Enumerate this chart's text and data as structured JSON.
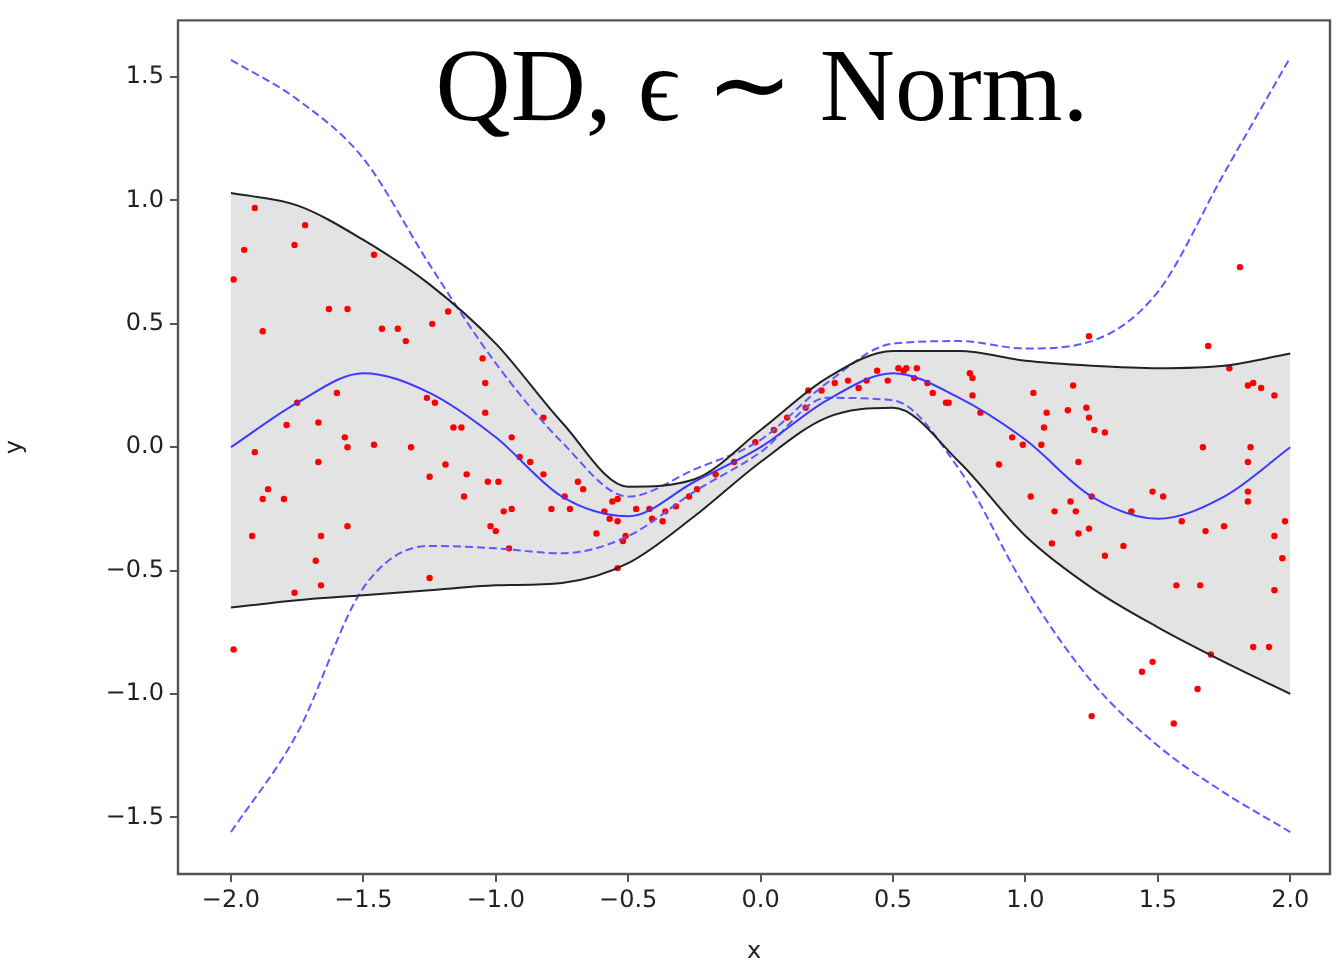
{
  "chart_data": {
    "type": "line",
    "title": "QD, ϵ ∼ Norm.",
    "xlabel": "x",
    "ylabel": "y",
    "xlim": [
      -2.2,
      2.15
    ],
    "ylim": [
      -1.73,
      1.73
    ],
    "xticks": [
      {
        "value": -2,
        "label": "−2.0"
      },
      {
        "value": -1.5,
        "label": "−1.5"
      },
      {
        "value": -1,
        "label": "−1.0"
      },
      {
        "value": -0.5,
        "label": "−0.5"
      },
      {
        "value": 0,
        "label": "0.0"
      },
      {
        "value": 0.5,
        "label": "0.5"
      },
      {
        "value": 1,
        "label": "1.0"
      },
      {
        "value": 1.5,
        "label": "1.5"
      },
      {
        "value": 2,
        "label": "2.0"
      }
    ],
    "yticks": [
      {
        "value": -1.5,
        "label": "−1.5"
      },
      {
        "value": -1,
        "label": "−1.0"
      },
      {
        "value": -0.5,
        "label": "−0.5"
      },
      {
        "value": 0,
        "label": "0.0"
      },
      {
        "value": 0.5,
        "label": "0.5"
      },
      {
        "value": 1,
        "label": "1.0"
      },
      {
        "value": 1.5,
        "label": "1.5"
      }
    ],
    "grid": false,
    "legend": false,
    "series": [
      {
        "color": "#3a3aff",
        "line_style": "solid",
        "x": [
          -2,
          -1.75,
          -1.5,
          -1.25,
          -1,
          -0.75,
          -0.5,
          -0.25,
          0,
          0.25,
          0.5,
          0.75,
          1,
          1.25,
          1.5,
          1.75,
          2
        ],
        "values": [
          0,
          0.18,
          0.3,
          0.22,
          0.04,
          -0.2,
          -0.28,
          -0.14,
          0,
          0.19,
          0.3,
          0.2,
          0.03,
          -0.2,
          -0.29,
          -0.2,
          0
        ],
        "lower": [
          -0.65,
          -0.62,
          -0.6,
          -0.58,
          -0.56,
          -0.55,
          -0.47,
          -0.28,
          -0.06,
          0.12,
          0.16,
          -0.06,
          -0.36,
          -0.57,
          -0.73,
          -0.87,
          -1.0
        ],
        "upper": [
          1.03,
          0.98,
          0.84,
          0.66,
          0.42,
          0.1,
          -0.16,
          -0.13,
          0.07,
          0.28,
          0.39,
          0.39,
          0.35,
          0.33,
          0.32,
          0.33,
          0.38
        ]
      },
      {
        "color": "#222222",
        "line_style": "solid",
        "x": [
          -2,
          -1.75,
          -1.5,
          -1.25,
          -1,
          -0.75,
          -0.5,
          -0.25,
          0,
          0.25,
          0.5,
          0.75,
          1,
          1.25,
          1.5,
          1.75,
          2
        ],
        "values": [
          -0.65,
          -0.62,
          -0.6,
          -0.58,
          -0.56,
          -0.55,
          -0.47,
          -0.28,
          -0.06,
          0.12,
          0.16,
          -0.06,
          -0.36,
          -0.57,
          -0.73,
          -0.87,
          -1.0
        ]
      },
      {
        "color": "#222222",
        "line_style": "solid",
        "x": [
          -2,
          -1.75,
          -1.5,
          -1.25,
          -1,
          -0.75,
          -0.5,
          -0.25,
          0,
          0.25,
          0.5,
          0.75,
          1,
          1.25,
          1.5,
          1.75,
          2
        ],
        "values": [
          1.03,
          0.98,
          0.84,
          0.66,
          0.42,
          0.1,
          -0.16,
          -0.13,
          0.07,
          0.28,
          0.39,
          0.39,
          0.35,
          0.33,
          0.32,
          0.33,
          0.38
        ]
      },
      {
        "color": "#5a5aff",
        "line_style": "dashed",
        "x": [
          -2,
          -1.75,
          -1.5,
          -1.25,
          -1,
          -0.75,
          -0.5,
          -0.25,
          0,
          0.25,
          0.5,
          0.75,
          1,
          1.25,
          1.5,
          1.75,
          2
        ],
        "values": [
          1.57,
          1.41,
          1.17,
          0.74,
          0.34,
          0.02,
          -0.2,
          -0.09,
          0.03,
          0.26,
          0.42,
          0.43,
          0.4,
          0.43,
          0.63,
          1.11,
          1.58
        ]
      },
      {
        "color": "#5a5aff",
        "line_style": "dashed",
        "x": [
          -2,
          -1.75,
          -1.5,
          -1.25,
          -1,
          -0.75,
          -0.5,
          -0.25,
          0,
          0.25,
          0.5,
          0.75,
          1,
          1.25,
          1.5,
          1.75,
          2
        ],
        "values": [
          -1.56,
          -1.16,
          -0.57,
          -0.4,
          -0.41,
          -0.43,
          -0.36,
          -0.18,
          -0.02,
          0.2,
          0.19,
          -0.09,
          -0.57,
          -0.95,
          -1.21,
          -1.4,
          -1.56
        ]
      },
      {
        "type": "scatter",
        "color": "#ff0000",
        "marker": "circle",
        "x": [
          -1.91,
          -1.72,
          -1.76,
          -1.95,
          -1.99,
          -1.46,
          -1.63,
          -1.56,
          -1.88,
          -1.43,
          -1.37,
          -1.34,
          -1.24,
          -1.18,
          -1.05,
          -1.04,
          -1.04,
          -0.94,
          -0.91,
          -0.87,
          -0.82,
          -0.82,
          -1.23,
          -1.26,
          -1.6,
          -1.75,
          -1.79,
          -1.67,
          -1.57,
          -1.56,
          -1.46,
          -1.32,
          -1.91,
          -1.67,
          -1.19,
          -1.25,
          -1.11,
          -1.12,
          -1.03,
          -0.99,
          -1.86,
          -1.88,
          -1.8,
          -0.97,
          -0.94,
          -1.02,
          -1.0,
          -0.95,
          -0.79,
          -1.92,
          -1.66,
          -1.56,
          -1.68,
          -1.66,
          -1.76,
          -1.25,
          -1.99,
          -1.16,
          -1.13,
          -0.74,
          -0.69,
          -0.67,
          -0.72,
          -0.62,
          -0.59,
          -0.56,
          -0.54,
          -0.57,
          -0.54,
          -0.52,
          -0.51,
          -0.54,
          -0.47,
          -0.42,
          -0.41,
          -0.36,
          -0.37,
          -0.32,
          -0.27,
          -0.24,
          -0.17,
          -0.1,
          -0.02,
          0.05,
          0.1,
          0.17,
          0.18,
          0.23,
          0.28,
          0.33,
          0.37,
          0.4,
          0.44,
          0.48,
          0.52,
          0.54,
          0.55,
          0.58,
          0.59,
          0.63,
          0.65,
          0.7,
          1.24,
          1.69,
          1.81,
          1.77,
          0.79,
          0.8,
          0.8,
          0.71,
          0.83,
          1.03,
          1.08,
          1.07,
          1.06,
          1.16,
          1.18,
          1.23,
          1.24,
          1.26,
          1.3,
          0.95,
          0.99,
          0.9,
          1.2,
          1.67,
          1.85,
          1.84,
          1.84,
          1.84,
          1.84,
          1.86,
          1.89,
          1.94,
          1.02,
          1.11,
          1.17,
          1.19,
          1.2,
          1.24,
          1.25,
          1.4,
          1.48,
          1.52,
          1.59,
          1.68,
          1.75,
          1.98,
          1.94,
          1.97,
          1.94,
          1.1,
          1.3,
          1.37,
          1.57,
          1.66,
          1.7,
          1.86,
          1.92,
          1.44,
          1.48,
          1.65,
          1.25,
          1.56
        ],
        "values": [
          0.97,
          0.9,
          0.82,
          0.8,
          0.68,
          0.78,
          0.56,
          0.56,
          0.47,
          0.48,
          0.48,
          0.43,
          0.5,
          0.55,
          0.36,
          0.26,
          0.14,
          0.04,
          -0.04,
          -0.06,
          -0.11,
          0.12,
          0.18,
          0.2,
          0.22,
          0.18,
          0.09,
          0.1,
          0.04,
          0.0,
          0.01,
          0.0,
          -0.02,
          -0.06,
          -0.07,
          -0.12,
          -0.11,
          -0.2,
          -0.14,
          -0.14,
          -0.17,
          -0.21,
          -0.21,
          -0.26,
          -0.25,
          -0.32,
          -0.34,
          -0.41,
          -0.25,
          -0.36,
          -0.36,
          -0.32,
          -0.46,
          -0.56,
          -0.59,
          -0.53,
          -0.82,
          0.08,
          0.08,
          -0.2,
          -0.14,
          -0.17,
          -0.25,
          -0.35,
          -0.26,
          -0.22,
          -0.21,
          -0.29,
          -0.3,
          -0.38,
          -0.36,
          -0.49,
          -0.25,
          -0.25,
          -0.29,
          -0.26,
          -0.3,
          -0.24,
          -0.2,
          -0.17,
          -0.11,
          -0.06,
          0.02,
          0.07,
          0.12,
          0.16,
          0.23,
          0.23,
          0.26,
          0.27,
          0.24,
          0.27,
          0.31,
          0.27,
          0.32,
          0.31,
          0.32,
          0.28,
          0.32,
          0.26,
          0.22,
          0.18,
          0.45,
          0.41,
          0.73,
          0.32,
          0.3,
          0.28,
          0.21,
          0.18,
          0.14,
          0.22,
          0.14,
          0.08,
          0.01,
          0.15,
          0.25,
          0.16,
          0.12,
          0.07,
          0.06,
          0.04,
          0.01,
          -0.07,
          -0.06,
          0.0,
          0.0,
          -0.06,
          -0.18,
          -0.22,
          0.25,
          0.26,
          0.24,
          0.21,
          -0.2,
          -0.26,
          -0.22,
          -0.26,
          -0.35,
          -0.33,
          -0.2,
          -0.26,
          -0.18,
          -0.2,
          -0.3,
          -0.34,
          -0.32,
          -0.3,
          -0.36,
          -0.45,
          -0.58,
          -0.39,
          -0.44,
          -0.4,
          -0.56,
          -0.56,
          -0.84,
          -0.81,
          -0.81,
          -0.91,
          -0.87,
          -0.98,
          -1.09,
          -1.12
        ]
      }
    ]
  }
}
